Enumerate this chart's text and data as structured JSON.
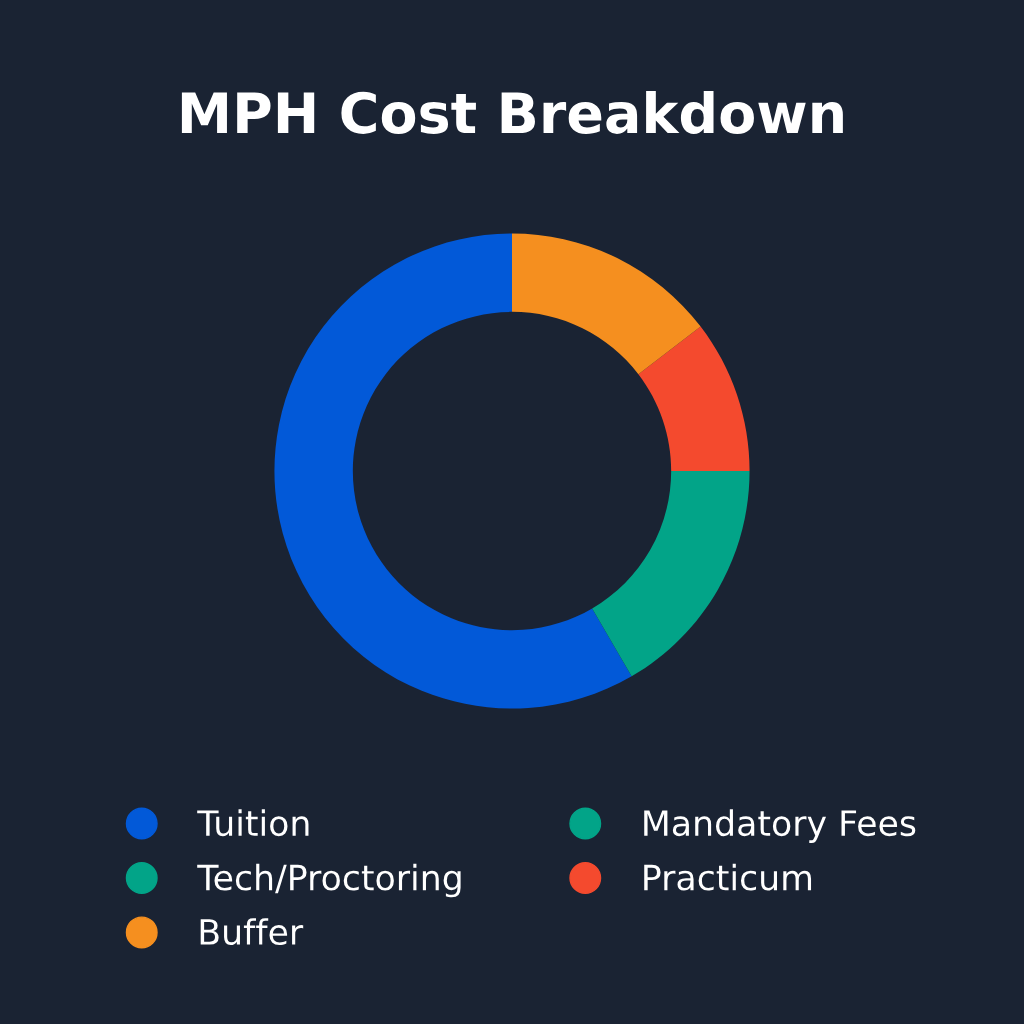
{
  "chart_data": {
    "type": "donut",
    "title": "MPH Cost Breakdown",
    "categories": [
      "Tuition",
      "Mandatory Fees",
      "Tech/Proctoring",
      "Practicum",
      "Buffer"
    ],
    "values": [
      58.4,
      16.6,
      0,
      10.4,
      14.6
    ],
    "colors": [
      "#0259d8",
      "#02a488",
      "#02a488",
      "#f44a2e",
      "#f58f1f"
    ],
    "legend": "bottom"
  }
}
